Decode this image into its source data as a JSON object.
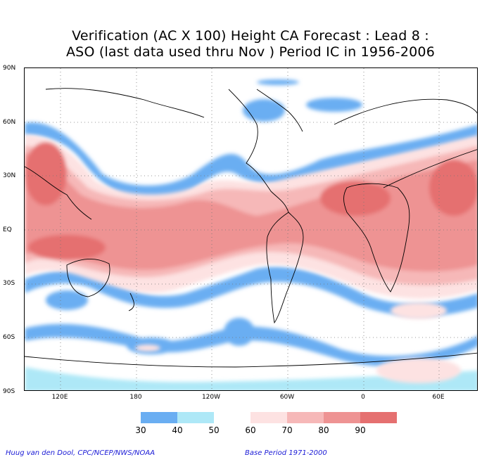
{
  "title": {
    "line1": "Verification (AC X 100) Height CA Forecast : Lead 8 :",
    "line2": "ASO (last data used thru Nov ) Period IC in 1956-2006"
  },
  "map": {
    "lat_labels": [
      "90N",
      "60N",
      "30N",
      "EQ",
      "30S",
      "60S",
      "90S"
    ],
    "lon_labels": [
      "120E",
      "180",
      "120W",
      "60W",
      "0",
      "60E"
    ],
    "grid": "dotted",
    "projection": "cylindrical equidistant, centered near 150W"
  },
  "legend": {
    "labels": [
      "30",
      "40",
      "50",
      "60",
      "70",
      "80",
      "90"
    ],
    "colors": [
      "#6aaef2",
      "#aee8f7",
      "#ffffff",
      "#fde2e2",
      "#f6b8b8",
      "#ee9393",
      "#e57070",
      "#dd5c5c"
    ]
  },
  "footer": {
    "credit": "Huug van den Dool, CPC/NCEP/NWS/NOAA",
    "base_period": "Base Period 1971-2000"
  }
}
